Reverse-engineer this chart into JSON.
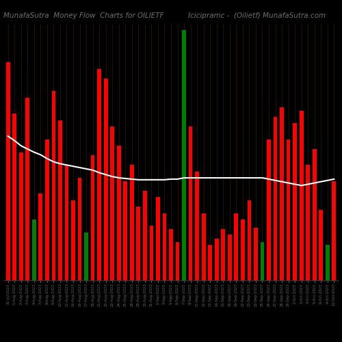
{
  "title_left": "MunafaSutra  Money Flow  Charts for OILIETF",
  "title_right": "Icicipramc -  (Oilietf) MunafaSutra.com",
  "background_color": "#000000",
  "bar_colors": [
    "red",
    "red",
    "red",
    "red",
    "green",
    "red",
    "red",
    "red",
    "red",
    "red",
    "red",
    "red",
    "green",
    "red",
    "red",
    "red",
    "red",
    "red",
    "red",
    "red",
    "red",
    "red",
    "red",
    "red",
    "red",
    "red",
    "red",
    "green",
    "red",
    "red",
    "red",
    "red",
    "red",
    "red",
    "red",
    "red",
    "red",
    "red",
    "red",
    "green",
    "red",
    "red",
    "red",
    "red",
    "red",
    "red",
    "red",
    "red",
    "red",
    "green",
    "red"
  ],
  "bar_heights": [
    340,
    260,
    200,
    285,
    95,
    135,
    220,
    295,
    250,
    180,
    125,
    160,
    75,
    195,
    330,
    315,
    240,
    210,
    155,
    180,
    115,
    140,
    85,
    130,
    105,
    80,
    60,
    390,
    240,
    170,
    105,
    55,
    65,
    80,
    72,
    105,
    95,
    125,
    82,
    60,
    220,
    255,
    270,
    220,
    245,
    265,
    180,
    205,
    110,
    55,
    155
  ],
  "ma_values": [
    225,
    218,
    210,
    205,
    200,
    196,
    190,
    185,
    182,
    180,
    178,
    176,
    174,
    172,
    168,
    165,
    162,
    160,
    159,
    158,
    157,
    157,
    157,
    157,
    157,
    158,
    158,
    160,
    160,
    160,
    160,
    160,
    160,
    160,
    160,
    160,
    160,
    160,
    160,
    160,
    158,
    156,
    154,
    152,
    150,
    148,
    150,
    152,
    154,
    156,
    158
  ],
  "x_labels": [
    "31-Jul-2023",
    "1-Aug-2023",
    "2-Aug-2023",
    "3-Aug-2023",
    "4-Aug-2023",
    "7-Aug-2023",
    "8-Aug-2023",
    "9-Aug-2023",
    "10-Aug-2023",
    "11-Aug-2023",
    "14-Aug-2023",
    "16-Aug-2023",
    "17-Aug-2023",
    "18-Aug-2023",
    "21-Aug-2023",
    "22-Aug-2023",
    "23-Aug-2023",
    "24-Aug-2023",
    "25-Aug-2023",
    "28-Aug-2023",
    "29-Aug-2023",
    "30-Aug-2023",
    "31-Aug-2023",
    "1-Sep-2023",
    "4-Sep-2023",
    "5-Sep-2023",
    "6-Sep-2023",
    "7-Sep-2023",
    "8-Sep-2023",
    "11-Sep-2023",
    "12-Sep-2023",
    "13-Sep-2023",
    "14-Sep-2023",
    "15-Sep-2023",
    "18-Sep-2023",
    "19-Sep-2023",
    "20-Sep-2023",
    "21-Sep-2023",
    "22-Sep-2023",
    "25-Sep-2023",
    "26-Sep-2023",
    "27-Sep-2023",
    "28-Sep-2023",
    "29-Sep-2023",
    "2-Oct-2023",
    "3-Oct-2023",
    "4-Oct-2023",
    "5-Oct-2023",
    "6-Oct-2023",
    "9-Oct-2023",
    "10-Oct-2023"
  ],
  "grid_color": "#3a1800",
  "ma_color": "#ffffff",
  "title_color": "#707070",
  "title_fontsize": 7.5,
  "ymax": 400
}
